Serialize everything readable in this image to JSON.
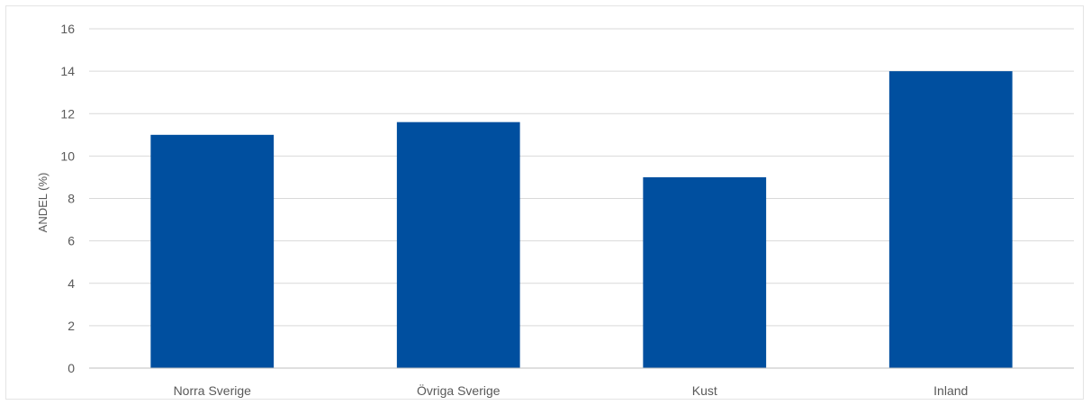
{
  "chart_data": {
    "type": "bar",
    "title": "",
    "xlabel": "",
    "ylabel": "ANDEL (%)",
    "categories": [
      "Norra Sverige",
      "Övriga Sverige",
      "Kust",
      "Inland"
    ],
    "values": [
      11.0,
      11.6,
      9.0,
      14.0
    ],
    "ylim": [
      0,
      16
    ],
    "yticks": [
      "0",
      "2",
      "4",
      "6",
      "8",
      "10",
      "12",
      "14",
      "16"
    ],
    "grid": true,
    "legend": "none",
    "bar_color": "#004f9f",
    "grid_color": "#d9d9d9",
    "axis_color": "#bfbfbf"
  }
}
